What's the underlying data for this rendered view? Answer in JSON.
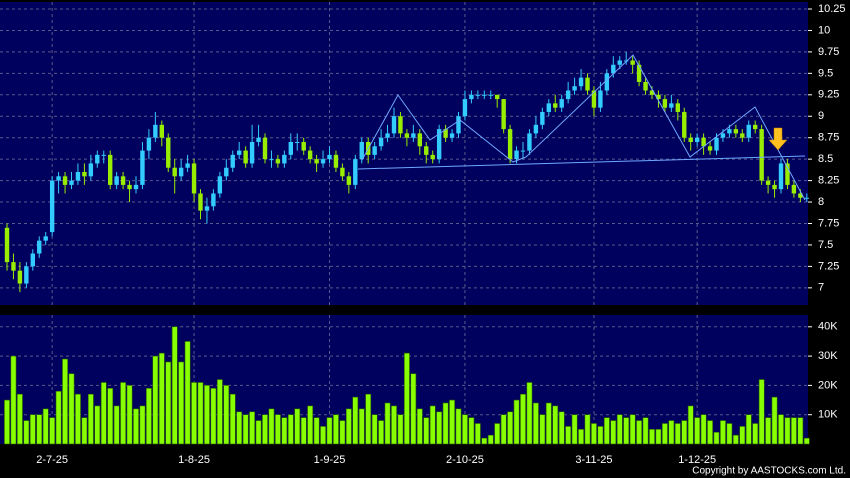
{
  "chart_data": [
    {
      "type": "candlestick",
      "categories": [
        null,
        null,
        null,
        null,
        null,
        null,
        null,
        "2-7-25",
        null,
        null,
        null,
        null,
        null,
        null,
        null,
        null,
        null,
        null,
        null,
        null,
        null,
        null,
        null,
        null,
        null,
        null,
        null,
        null,
        null,
        "1-8-25",
        null,
        null,
        null,
        null,
        null,
        null,
        null,
        null,
        null,
        null,
        null,
        null,
        null,
        null,
        null,
        null,
        null,
        null,
        null,
        null,
        "1-9-25",
        null,
        null,
        null,
        null,
        null,
        null,
        null,
        null,
        null,
        null,
        null,
        null,
        null,
        null,
        null,
        null,
        null,
        null,
        null,
        null,
        "2-10-25",
        null,
        null,
        null,
        null,
        null,
        null,
        null,
        null,
        null,
        null,
        null,
        null,
        null,
        null,
        null,
        null,
        null,
        null,
        null,
        "3-11-25",
        null,
        null,
        null,
        null,
        null,
        null,
        null,
        null,
        null,
        null,
        null,
        null,
        null,
        null,
        null,
        "1-12-25",
        null,
        null,
        null,
        null,
        null,
        null,
        null,
        null,
        null,
        null,
        null,
        null,
        null,
        null,
        null,
        null,
        null
      ],
      "open": [
        7.7,
        7.3,
        7.2,
        7.05,
        7.25,
        7.4,
        7.55,
        7.65,
        8.25,
        8.3,
        8.2,
        8.25,
        8.35,
        8.3,
        8.45,
        8.55,
        8.55,
        8.2,
        8.3,
        8.2,
        8.15,
        8.2,
        8.6,
        8.75,
        8.9,
        8.75,
        8.4,
        8.3,
        8.4,
        8.45,
        8.1,
        7.9,
        7.95,
        8.1,
        8.3,
        8.4,
        8.55,
        8.6,
        8.45,
        8.7,
        8.75,
        8.5,
        8.5,
        8.45,
        8.55,
        8.7,
        8.7,
        8.6,
        8.5,
        8.45,
        8.5,
        8.55,
        8.4,
        8.3,
        8.2,
        8.5,
        8.7,
        8.55,
        8.65,
        8.75,
        8.8,
        9.0,
        8.8,
        8.75,
        8.8,
        8.65,
        8.55,
        8.5,
        8.85,
        8.75,
        8.8,
        9.0,
        9.2,
        9.25,
        9.25,
        9.25,
        9.25,
        9.2,
        8.85,
        8.5,
        8.6,
        8.6,
        8.8,
        8.9,
        9.05,
        9.15,
        9.1,
        9.2,
        9.3,
        9.35,
        9.45,
        9.3,
        9.1,
        9.3,
        9.5,
        9.6,
        9.65,
        9.65,
        9.6,
        9.4,
        9.3,
        9.25,
        9.2,
        9.1,
        9.15,
        9.05,
        8.75,
        8.7,
        8.75,
        8.65,
        8.6,
        8.75,
        8.8,
        8.85,
        8.8,
        8.75,
        8.9,
        8.85,
        8.25,
        8.2,
        8.15,
        8.45,
        8.2,
        8.1,
        8.05
      ],
      "high": [
        7.75,
        7.4,
        7.3,
        7.3,
        7.45,
        7.6,
        7.65,
        8.3,
        8.35,
        8.35,
        8.35,
        8.45,
        8.45,
        8.55,
        8.6,
        8.6,
        8.6,
        8.35,
        8.35,
        8.25,
        8.3,
        8.7,
        8.85,
        9.05,
        8.95,
        8.8,
        8.5,
        8.5,
        8.55,
        8.5,
        8.15,
        8.05,
        8.15,
        8.35,
        8.5,
        8.6,
        8.7,
        8.65,
        8.9,
        8.9,
        8.8,
        8.6,
        8.55,
        8.6,
        8.8,
        8.8,
        8.75,
        8.65,
        8.55,
        8.6,
        8.65,
        8.6,
        8.45,
        8.35,
        8.55,
        8.75,
        8.75,
        8.7,
        8.85,
        8.9,
        9.1,
        9.05,
        8.85,
        8.9,
        8.85,
        8.7,
        8.6,
        8.9,
        8.9,
        8.85,
        9.05,
        9.3,
        9.3,
        9.3,
        9.3,
        9.3,
        9.25,
        9.2,
        8.9,
        8.65,
        8.7,
        8.85,
        9.0,
        9.1,
        9.2,
        9.25,
        9.25,
        9.4,
        9.45,
        9.55,
        9.5,
        9.35,
        9.4,
        9.55,
        9.7,
        9.7,
        9.75,
        9.7,
        9.65,
        9.45,
        9.35,
        9.3,
        9.25,
        9.25,
        9.2,
        9.1,
        8.8,
        8.8,
        8.8,
        8.7,
        8.8,
        8.85,
        8.9,
        8.9,
        8.85,
        8.95,
        8.95,
        8.9,
        8.3,
        8.25,
        8.5,
        8.5,
        8.25,
        8.15,
        8.1
      ],
      "low": [
        7.2,
        7.1,
        6.95,
        7.0,
        7.2,
        7.35,
        7.5,
        7.6,
        8.1,
        8.1,
        8.15,
        8.2,
        8.2,
        8.25,
        8.4,
        8.45,
        8.15,
        8.15,
        8.15,
        8.0,
        8.1,
        8.15,
        8.5,
        8.7,
        8.65,
        8.35,
        8.1,
        8.25,
        8.35,
        8.0,
        7.8,
        7.75,
        7.9,
        8.05,
        8.25,
        8.35,
        8.5,
        8.4,
        8.4,
        8.65,
        8.45,
        8.4,
        8.4,
        8.4,
        8.5,
        8.6,
        8.55,
        8.45,
        8.35,
        8.4,
        8.45,
        8.35,
        8.25,
        8.1,
        8.15,
        8.45,
        8.45,
        8.5,
        8.6,
        8.7,
        8.75,
        8.75,
        8.65,
        8.7,
        8.55,
        8.45,
        8.45,
        8.45,
        8.7,
        8.7,
        8.75,
        8.95,
        9.15,
        9.2,
        9.2,
        9.2,
        9.1,
        8.8,
        8.45,
        8.45,
        8.5,
        8.55,
        8.75,
        8.85,
        9.0,
        9.05,
        9.05,
        9.15,
        9.25,
        9.3,
        9.25,
        9.0,
        9.05,
        9.25,
        9.45,
        9.55,
        9.6,
        9.5,
        9.35,
        9.25,
        9.2,
        9.1,
        9.05,
        9.05,
        8.95,
        8.7,
        8.6,
        8.65,
        8.55,
        8.55,
        8.55,
        8.7,
        8.75,
        8.75,
        8.7,
        8.7,
        8.8,
        8.2,
        8.1,
        8.05,
        8.1,
        8.15,
        8.05,
        8.0,
        8.0
      ],
      "close": [
        7.3,
        7.2,
        7.05,
        7.25,
        7.4,
        7.55,
        7.6,
        8.25,
        8.3,
        8.2,
        8.25,
        8.35,
        8.3,
        8.45,
        8.55,
        8.55,
        8.2,
        8.3,
        8.2,
        8.15,
        8.2,
        8.6,
        8.75,
        8.9,
        8.75,
        8.4,
        8.3,
        8.4,
        8.45,
        8.1,
        7.9,
        7.95,
        8.1,
        8.3,
        8.4,
        8.55,
        8.6,
        8.45,
        8.7,
        8.75,
        8.5,
        8.5,
        8.45,
        8.55,
        8.7,
        8.7,
        8.6,
        8.5,
        8.45,
        8.5,
        8.55,
        8.4,
        8.3,
        8.2,
        8.5,
        8.7,
        8.55,
        8.65,
        8.75,
        8.8,
        9.0,
        8.8,
        8.75,
        8.8,
        8.65,
        8.55,
        8.5,
        8.85,
        8.75,
        8.8,
        9.0,
        9.2,
        9.25,
        9.25,
        9.25,
        9.25,
        9.2,
        8.85,
        8.5,
        8.6,
        8.6,
        8.8,
        8.9,
        9.05,
        9.15,
        9.1,
        9.2,
        9.3,
        9.35,
        9.45,
        9.3,
        9.1,
        9.3,
        9.5,
        9.6,
        9.65,
        9.65,
        9.6,
        9.4,
        9.3,
        9.25,
        9.2,
        9.1,
        9.15,
        9.05,
        8.75,
        8.7,
        8.75,
        8.65,
        8.6,
        8.75,
        8.8,
        8.85,
        8.8,
        8.75,
        8.9,
        8.85,
        8.25,
        8.2,
        8.15,
        8.45,
        8.2,
        8.1,
        8.05,
        8.05
      ],
      "up_color": "#33ccff",
      "down_color": "#99ee00",
      "ylim": [
        6.8,
        10.25
      ],
      "yticks": [
        7,
        7.25,
        7.5,
        7.75,
        8,
        8.25,
        8.5,
        8.75,
        9,
        9.25,
        9.5,
        9.75,
        10,
        10.25
      ],
      "grid": true
    },
    {
      "type": "bar",
      "values": [
        15000,
        30000,
        17000,
        8000,
        10000,
        10000,
        12000,
        9000,
        18000,
        29000,
        24000,
        17000,
        9000,
        17000,
        13000,
        21000,
        19000,
        13000,
        21000,
        20000,
        12000,
        13000,
        19000,
        30000,
        31000,
        28000,
        40000,
        28000,
        35000,
        21000,
        21000,
        20000,
        19000,
        22000,
        20000,
        17000,
        11000,
        10000,
        11000,
        8000,
        10000,
        12000,
        10000,
        9000,
        10000,
        12000,
        9000,
        13000,
        9000,
        6000,
        9000,
        10000,
        8000,
        12000,
        16000,
        12000,
        17000,
        10000,
        8000,
        14000,
        13000,
        10000,
        31000,
        24000,
        12000,
        9000,
        13000,
        11000,
        14000,
        15000,
        12000,
        10000,
        9000,
        7000,
        2000,
        3000,
        7000,
        10000,
        11000,
        15000,
        17000,
        21000,
        14000,
        10000,
        14000,
        13000,
        11000,
        6000,
        10000,
        5000,
        10000,
        7000,
        6000,
        9000,
        8000,
        10000,
        9000,
        10000,
        8000,
        9000,
        5000,
        5000,
        7000,
        8000,
        7000,
        8000,
        13000,
        9000,
        10000,
        8000,
        4000,
        8000,
        7000,
        3000,
        6000,
        10000,
        7000,
        22000,
        9000,
        16000,
        10000,
        9000,
        9000,
        9000,
        2000
      ],
      "color": "#88ff00",
      "ylim": [
        0,
        43000
      ],
      "yticks": [
        {
          "value": 10000,
          "label": "10K"
        },
        {
          "value": 20000,
          "label": "20K"
        },
        {
          "value": 30000,
          "label": "30K"
        },
        {
          "value": 40000,
          "label": "40K"
        }
      ],
      "grid": true
    }
  ],
  "copyright": "Copyright by AASTOCKS.com Ltd."
}
